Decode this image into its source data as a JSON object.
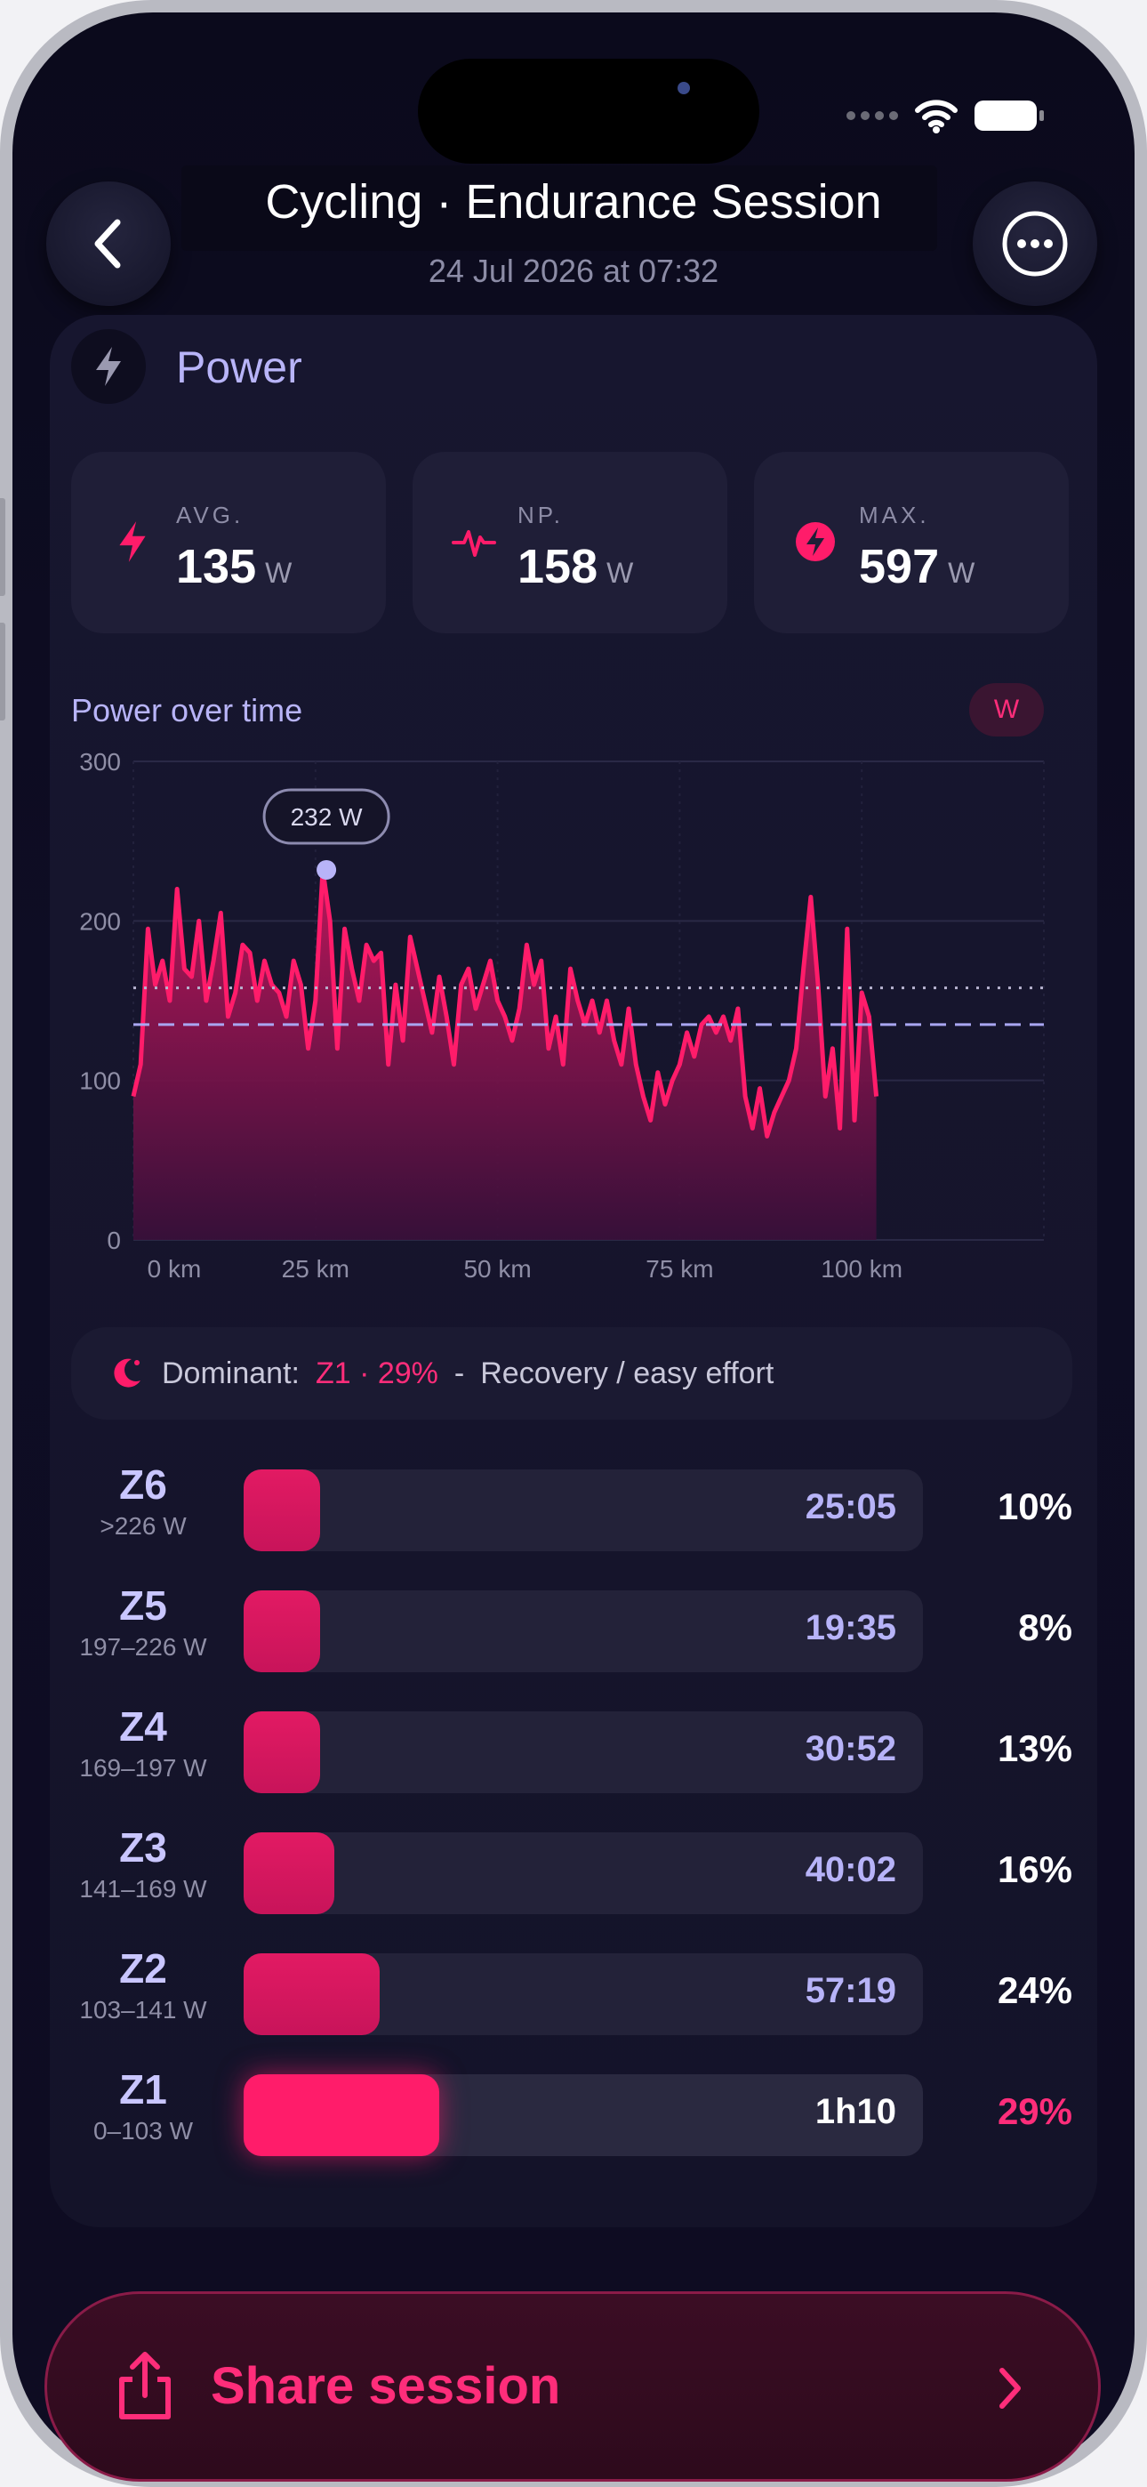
{
  "status_bar": {
    "icons": [
      "signal-icon",
      "wifi-icon",
      "battery-icon"
    ]
  },
  "header": {
    "title": "Cycling · Endurance Session",
    "subtitle": "24 Jul 2026 at 07:32",
    "back_icon": "chevron-left-icon",
    "more_icon": "ellipsis-icon"
  },
  "power": {
    "section_title": "Power",
    "section_icon": "bolt-icon",
    "stats": [
      {
        "label": "AVG.",
        "value": "135",
        "unit": "W",
        "icon": "bolt-icon"
      },
      {
        "label": "NP.",
        "value": "158",
        "unit": "W",
        "icon": "pulse-icon"
      },
      {
        "label": "MAX.",
        "value": "597",
        "unit": "W",
        "icon": "bolt-circle-icon"
      }
    ],
    "chart_title": "Power over time",
    "chart_unit": "W",
    "peak_label": "232 W"
  },
  "chart_data": {
    "type": "area",
    "title": "Power over time",
    "xlabel": "",
    "ylabel": "",
    "x_unit": "km",
    "y_unit": "W",
    "xlim": [
      0,
      125
    ],
    "ylim": [
      0,
      300
    ],
    "x_ticks": [
      "0 km",
      "25 km",
      "50 km",
      "75 km",
      "100 km"
    ],
    "y_ticks": [
      "0",
      "100",
      "200",
      "300"
    ],
    "grid": true,
    "reference_lines": [
      {
        "label": "NP",
        "value": 158,
        "style": "dotted"
      },
      {
        "label": "AVG",
        "value": 135,
        "style": "dashed"
      }
    ],
    "peak": {
      "x": 26.5,
      "y": 232,
      "label": "232 W"
    },
    "series": [
      {
        "x": [
          0,
          1,
          2,
          3,
          4,
          5,
          6,
          7,
          8,
          9,
          10,
          11,
          12,
          13,
          14,
          15,
          16,
          17,
          18,
          19,
          20,
          21,
          22,
          23,
          24,
          25,
          26,
          27,
          28,
          29,
          30,
          31,
          32,
          33,
          34,
          35,
          36,
          37,
          38,
          39,
          40,
          41,
          42,
          43,
          44,
          45,
          46,
          47,
          48,
          49,
          50,
          51,
          52,
          53,
          54,
          55,
          56,
          57,
          58,
          59,
          60,
          61,
          62,
          63,
          64,
          65,
          66,
          67,
          68,
          69,
          70,
          71,
          72,
          73,
          74,
          75,
          76,
          77,
          78,
          79,
          80,
          81,
          82,
          83,
          84,
          85,
          86,
          87,
          88,
          89,
          90,
          91,
          92,
          93,
          94,
          95,
          96,
          97,
          98,
          99,
          100,
          101,
          102
        ],
        "y": [
          90,
          110,
          195,
          160,
          175,
          150,
          220,
          170,
          165,
          200,
          150,
          175,
          205,
          140,
          155,
          185,
          180,
          150,
          175,
          160,
          155,
          140,
          175,
          160,
          120,
          150,
          232,
          200,
          120,
          195,
          170,
          150,
          185,
          175,
          180,
          110,
          160,
          125,
          190,
          170,
          150,
          130,
          165,
          140,
          110,
          160,
          170,
          145,
          160,
          175,
          150,
          140,
          125,
          145,
          185,
          160,
          175,
          120,
          140,
          110,
          170,
          150,
          135,
          150,
          130,
          150,
          125,
          110,
          145,
          110,
          90,
          75,
          105,
          85,
          100,
          110,
          130,
          115,
          135,
          140,
          130,
          140,
          125,
          145,
          90,
          70,
          95,
          65,
          80,
          90,
          100,
          120,
          170,
          215,
          160,
          90,
          120,
          70,
          195,
          75,
          155,
          140,
          90
        ]
      }
    ],
    "x_axis": "distance"
  },
  "dominant": {
    "icon": "moon-icon",
    "label": "Dominant:",
    "zone": "Z1 · 29%",
    "separator": "-",
    "description": "Recovery / easy effort"
  },
  "zones": [
    {
      "name": "Z6",
      "range": ">226 W",
      "time": "25:05",
      "percent": "10%",
      "fraction": 0.1
    },
    {
      "name": "Z5",
      "range": "197–226 W",
      "time": "19:35",
      "percent": "8%",
      "fraction": 0.08
    },
    {
      "name": "Z4",
      "range": "169–197 W",
      "time": "30:52",
      "percent": "13%",
      "fraction": 0.13
    },
    {
      "name": "Z3",
      "range": "141–169 W",
      "time": "40:02",
      "percent": "16%",
      "fraction": 0.16
    },
    {
      "name": "Z2",
      "range": "103–141 W",
      "time": "57:19",
      "percent": "24%",
      "fraction": 0.24
    },
    {
      "name": "Z1",
      "range": "0–103 W",
      "time": "1h10",
      "percent": "29%",
      "fraction": 0.29
    }
  ],
  "share": {
    "label": "Share session",
    "icon": "share-icon",
    "chevron": "chevron-right-icon"
  },
  "colors": {
    "accent": "#ff1c6a",
    "lavender": "#b8b4f8",
    "background": "#0e0d24"
  }
}
